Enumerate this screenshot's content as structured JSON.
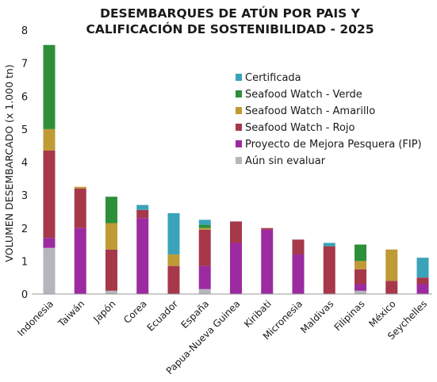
{
  "chart_data": {
    "type": "bar",
    "stacked": true,
    "title_lines": [
      "DESEMBARQUES DE ATÚN POR PAIS Y",
      "CALIFICACIÓN DE SOSTENIBILIDAD - 2025"
    ],
    "ylabel": "VOLUMEN DESEMBARCADO  (x 1.000 tn)",
    "xlabel": "",
    "ylim": [
      0,
      8
    ],
    "yticks": [
      "0",
      "1",
      "2",
      "3",
      "4",
      "5",
      "6",
      "7",
      "8"
    ],
    "grid": false,
    "legend_position": "right",
    "categories": [
      "Indonesia",
      "Taiwán",
      "Japón",
      "Corea",
      "Ecuador",
      "España",
      "Papua-Nueva Guinea",
      "Kiribati",
      "Micronesia",
      "Maldivas",
      "Filipinas",
      "México",
      "Seychelles"
    ],
    "series": [
      {
        "name": "Aún sin evaluar",
        "color": "#b4b6bb",
        "values": [
          1.4,
          0,
          0.1,
          0,
          0,
          0.15,
          0,
          0,
          0,
          0,
          0.1,
          0,
          0
        ]
      },
      {
        "name": "Proyecto de Mejora Pesquera (FIP)",
        "color": "#9c2aa0",
        "values": [
          0.3,
          2.0,
          0,
          2.3,
          0,
          0.7,
          1.55,
          1.95,
          1.2,
          0,
          0.2,
          0,
          0.3
        ]
      },
      {
        "name": "Seafood Watch - Rojo",
        "color": "#a6384a",
        "values": [
          2.65,
          1.2,
          1.25,
          0.25,
          0.85,
          1.1,
          0.65,
          0.05,
          0.45,
          1.45,
          0.45,
          0.4,
          0.2
        ]
      },
      {
        "name": "Seafood Watch - Amarillo",
        "color": "#bf9a35",
        "values": [
          0.65,
          0.05,
          0.8,
          0,
          0.35,
          0.05,
          0,
          0,
          0,
          0,
          0.25,
          0.95,
          0
        ]
      },
      {
        "name": "Seafood Watch - Verde",
        "color": "#2d8f3a",
        "values": [
          2.55,
          0,
          0.8,
          0,
          0,
          0.1,
          0,
          0,
          0,
          0,
          0.5,
          0,
          0
        ]
      },
      {
        "name": "Certificada",
        "color": "#3aa3ba",
        "values": [
          0,
          0,
          0,
          0.15,
          1.25,
          0.15,
          0,
          0,
          0,
          0.1,
          0,
          0,
          0.6
        ]
      }
    ],
    "legend_order": [
      "Certificada",
      "Seafood Watch - Verde",
      "Seafood Watch - Amarillo",
      "Seafood Watch - Rojo",
      "Proyecto de Mejora Pesquera (FIP)",
      "Aún sin evaluar"
    ]
  }
}
